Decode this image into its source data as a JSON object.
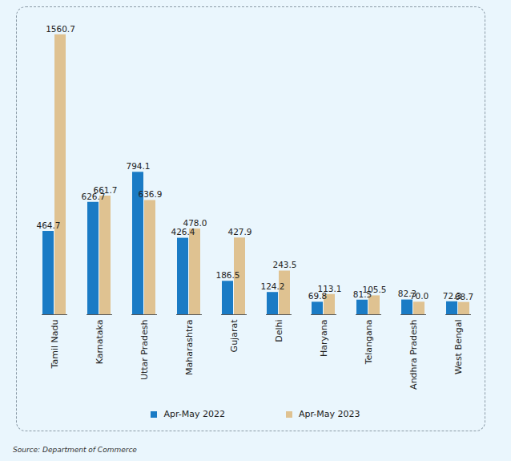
{
  "chart_data": {
    "type": "bar",
    "categories": [
      "Tamil Nadu",
      "Karnataka",
      "Uttar Pradesh",
      "Maharashtra",
      "Gujarat",
      "Delhi",
      "Haryana",
      "Telangana",
      "Andhra Pradesh",
      "West Bengal"
    ],
    "series": [
      {
        "name": "Apr-May 2022",
        "color": "#1a7bc5",
        "values": [
          464.7,
          626.7,
          794.1,
          426.4,
          186.5,
          124.2,
          69.8,
          81.5,
          82.3,
          72.3
        ],
        "value_labels": [
          "464.7",
          "626.7",
          "794.1",
          "426.4",
          "186.5",
          "124.2",
          "69.8",
          "81.5",
          "82.3",
          "72.3"
        ]
      },
      {
        "name": "Apr-May 2023",
        "color": "#dfc291",
        "values": [
          1560.7,
          661.7,
          636.9,
          478.0,
          427.9,
          243.5,
          113.1,
          105.5,
          70.0,
          68.7
        ],
        "value_labels": [
          "1560.7",
          "661.7",
          "636.9",
          "478.0",
          "427.9",
          "243.5",
          "113.1",
          "105.5",
          "70.0",
          "68.7"
        ]
      }
    ],
    "ylim": [
      0,
      1600
    ],
    "data_labels": true,
    "tick_labels": "x",
    "legend": "bottom",
    "source": "Source: Department of Commerce"
  }
}
